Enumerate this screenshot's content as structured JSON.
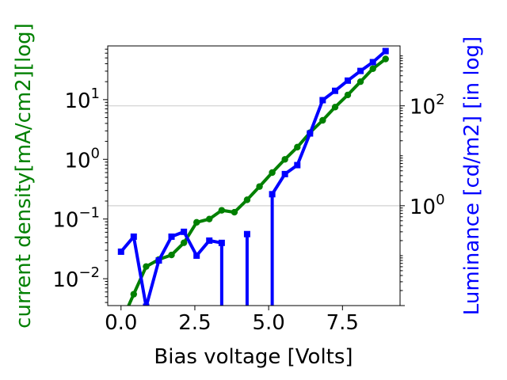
{
  "chart_data": {
    "type": "line",
    "xlabel": "Bias voltage [Volts]",
    "ylabel_left": "current density[mA/cm2][log]",
    "ylabel_right": "Luminance [cd/m2] [in log]",
    "xlim": [
      -0.45,
      9.45
    ],
    "ylim_left_log10": [
      -2.45,
      1.9
    ],
    "ylim_right_log10": [
      -2.0,
      3.2
    ],
    "x_scale": "linear",
    "y_left_scale": "log",
    "y_right_scale": "log",
    "x_ticks": [
      0.0,
      2.5,
      5.0,
      7.5
    ],
    "x_tick_labels": [
      "0.0",
      "2.5",
      "5.0",
      "7.5"
    ],
    "y_left_ticks_log10": [
      -2,
      -1,
      0,
      1
    ],
    "y_left_tick_labels": [
      {
        "base": "10",
        "exp": "−2"
      },
      {
        "base": "10",
        "exp": "−1"
      },
      {
        "base": "10",
        "exp": "0"
      },
      {
        "base": "10",
        "exp": "1"
      }
    ],
    "y_right_ticks_log10": [
      0,
      2
    ],
    "y_right_tick_labels": [
      {
        "base": "10",
        "exp": "0"
      },
      {
        "base": "10",
        "exp": "2"
      }
    ],
    "grid": "horizontal lines at right-axis major ticks",
    "colors": {
      "current": "#008000",
      "luminance": "#0000ff",
      "grid": "#d0d0d0",
      "axes": "#000000"
    },
    "series": [
      {
        "axis": "left",
        "marker": "circle",
        "color": "#008000",
        "x": [
          0.43,
          0.85,
          1.28,
          1.71,
          2.13,
          2.56,
          2.99,
          3.41,
          3.84,
          4.27,
          4.69,
          5.12,
          5.55,
          5.97,
          6.4,
          6.83,
          7.25,
          7.68,
          8.11,
          8.53,
          8.96
        ],
        "y": [
          0.0055,
          0.016,
          0.021,
          0.025,
          0.04,
          0.088,
          0.1,
          0.14,
          0.13,
          0.21,
          0.35,
          0.6,
          1.0,
          1.6,
          2.8,
          4.5,
          7.5,
          12,
          20,
          33,
          48
        ]
      },
      {
        "axis": "right",
        "marker": "square",
        "color": "#0000ff",
        "segments": [
          {
            "x": [
              0.0,
              0.43,
              0.85,
              1.28,
              1.71,
              2.13,
              2.56,
              2.99,
              3.41
            ],
            "y": [
              0.12,
              0.24,
              0.0095,
              0.08,
              0.24,
              0.3,
              0.1,
              0.2,
              0.18
            ]
          },
          {
            "x": [
              4.27
            ],
            "y": [
              0.27
            ]
          },
          {
            "x": [
              5.12,
              5.55,
              5.97,
              6.4,
              6.83,
              7.25,
              7.68,
              8.11,
              8.53,
              8.96
            ],
            "y": [
              1.7,
              4.3,
              6.5,
              28,
              130,
              200,
              320,
              500,
              750,
              1250
            ]
          }
        ],
        "drops": [
          {
            "x": 3.41,
            "from": 0.18
          },
          {
            "x": 4.27,
            "from": 0.27
          },
          {
            "x": 5.12,
            "from": 1.7
          }
        ]
      }
    ]
  }
}
